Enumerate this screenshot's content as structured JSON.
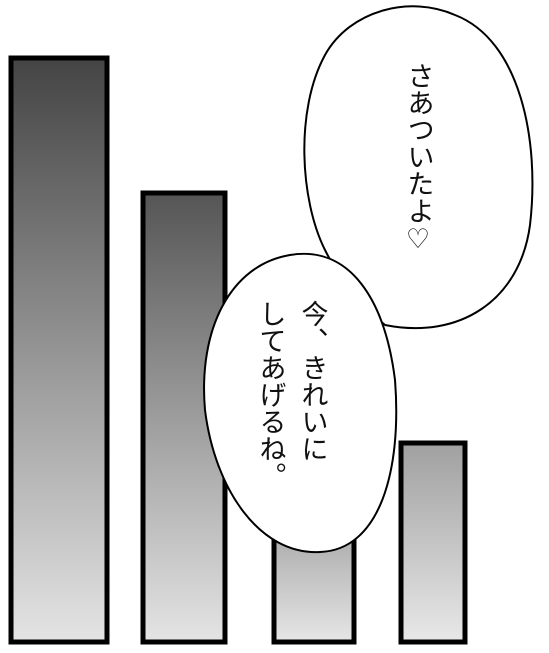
{
  "panel": {
    "background_color": "#ffffff",
    "bar_stroke_color": "#000000",
    "bubble_fill_color": "#ffffff",
    "bubble_stroke_color": "#000000"
  },
  "bubbles": {
    "top": {
      "line1": "さあついたよ♡"
    },
    "bottom": {
      "line1": "今、きれいに",
      "line2": "してあげるね。"
    }
  }
}
